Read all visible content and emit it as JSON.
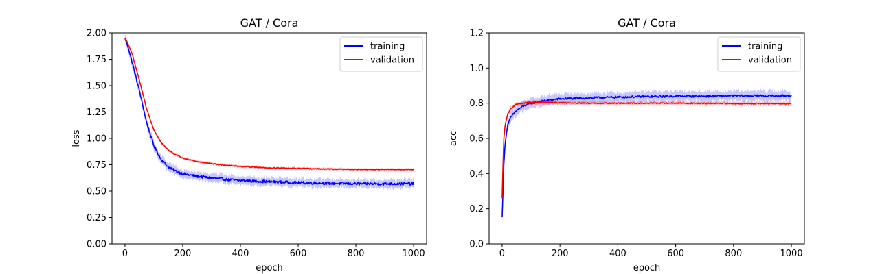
{
  "chart_data": [
    {
      "type": "line",
      "title": "GAT / Cora",
      "xlabel": "epoch",
      "ylabel": "loss",
      "xlim": [
        -45,
        1045
      ],
      "ylim": [
        0,
        2.0
      ],
      "xticks": [
        0,
        200,
        400,
        600,
        800,
        1000
      ],
      "xtick_labels": [
        "0",
        "200",
        "400",
        "600",
        "800",
        "1000"
      ],
      "yticks": [
        0,
        0.25,
        0.5,
        0.75,
        1.0,
        1.25,
        1.5,
        1.75,
        2.0
      ],
      "ytick_labels": [
        "0.00",
        "0.25",
        "0.50",
        "0.75",
        "1.00",
        "1.25",
        "1.50",
        "1.75",
        "2.00"
      ],
      "legend_position": "top-right",
      "grid": false,
      "series": [
        {
          "name": "training",
          "color": "#0000ff",
          "band_color": "#0000ff",
          "noise": 0.013,
          "band_width": 0.04,
          "x": [
            0,
            10,
            25,
            50,
            75,
            100,
            125,
            150,
            175,
            200,
            250,
            300,
            350,
            400,
            500,
            600,
            700,
            800,
            900,
            1000
          ],
          "values": [
            1.95,
            1.87,
            1.72,
            1.45,
            1.15,
            0.93,
            0.8,
            0.73,
            0.69,
            0.665,
            0.64,
            0.625,
            0.61,
            0.6,
            0.59,
            0.58,
            0.575,
            0.57,
            0.57,
            0.57
          ]
        },
        {
          "name": "validation",
          "color": "#ff0000",
          "band_color": "#ff0000",
          "noise": 0.004,
          "band_width": 0.012,
          "x": [
            0,
            10,
            25,
            50,
            75,
            100,
            125,
            150,
            175,
            200,
            250,
            300,
            350,
            400,
            500,
            600,
            700,
            800,
            900,
            1000
          ],
          "values": [
            1.95,
            1.9,
            1.8,
            1.55,
            1.28,
            1.08,
            0.96,
            0.89,
            0.845,
            0.815,
            0.78,
            0.76,
            0.745,
            0.735,
            0.72,
            0.715,
            0.71,
            0.705,
            0.705,
            0.705
          ]
        }
      ]
    },
    {
      "type": "line",
      "title": "GAT / Cora",
      "xlabel": "epoch",
      "ylabel": "acc",
      "xlim": [
        -45,
        1045
      ],
      "ylim": [
        0,
        1.2
      ],
      "xticks": [
        0,
        200,
        400,
        600,
        800,
        1000
      ],
      "xtick_labels": [
        "0",
        "200",
        "400",
        "600",
        "800",
        "1000"
      ],
      "yticks": [
        0,
        0.2,
        0.4,
        0.6,
        0.8,
        1.0,
        1.2
      ],
      "ytick_labels": [
        "0.0",
        "0.2",
        "0.4",
        "0.6",
        "0.8",
        "1.0",
        "1.2"
      ],
      "legend_position": "top-right",
      "grid": false,
      "series": [
        {
          "name": "training",
          "color": "#0000ff",
          "band_color": "#0000ff",
          "noise": 0.006,
          "band_width": 0.028,
          "x": [
            0,
            3,
            6,
            10,
            15,
            20,
            30,
            50,
            75,
            100,
            150,
            200,
            300,
            400,
            500,
            600,
            700,
            800,
            900,
            1000
          ],
          "values": [
            0.15,
            0.3,
            0.45,
            0.56,
            0.63,
            0.68,
            0.72,
            0.76,
            0.785,
            0.8,
            0.815,
            0.825,
            0.83,
            0.835,
            0.838,
            0.84,
            0.84,
            0.842,
            0.842,
            0.843
          ]
        },
        {
          "name": "validation",
          "color": "#ff0000",
          "band_color": "#ff0000",
          "noise": 0.003,
          "band_width": 0.012,
          "x": [
            0,
            3,
            6,
            10,
            15,
            20,
            30,
            50,
            75,
            100,
            150,
            200,
            300,
            400,
            500,
            600,
            700,
            800,
            900,
            1000
          ],
          "values": [
            0.26,
            0.45,
            0.6,
            0.67,
            0.71,
            0.74,
            0.77,
            0.795,
            0.8,
            0.805,
            0.805,
            0.803,
            0.8,
            0.8,
            0.8,
            0.8,
            0.799,
            0.798,
            0.798,
            0.797
          ]
        }
      ]
    }
  ]
}
